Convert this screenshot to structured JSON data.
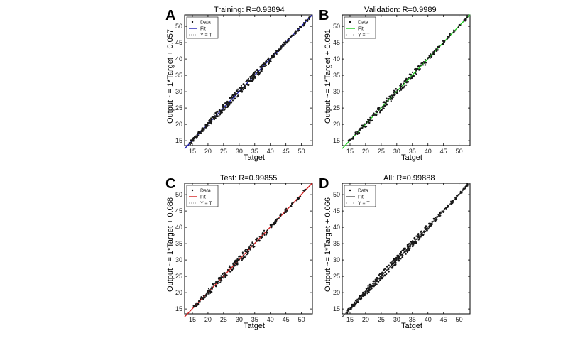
{
  "chart_data": [
    {
      "type": "scatter",
      "panel_label": "A",
      "title": "Training: R=0.93894",
      "xlabel": "Tatget",
      "ylabel": "Output ~= 1*Target + 0.057",
      "xlim": [
        12.5,
        53.5
      ],
      "ylim": [
        13.5,
        53.5
      ],
      "xticks": [
        15,
        20,
        25,
        30,
        35,
        40,
        45,
        50
      ],
      "yticks": [
        15,
        20,
        25,
        30,
        35,
        40,
        45,
        50
      ],
      "fit_color": "#1f1fb4",
      "fit": {
        "slope": 1,
        "intercept": 0.057
      },
      "legend": {
        "placement": "top-left",
        "entries": [
          "Data",
          "Fit",
          "Y = T"
        ]
      },
      "points": [
        [
          14.6,
          15.1
        ],
        [
          15.3,
          15.0
        ],
        [
          15.8,
          16.2
        ],
        [
          16.5,
          16.3
        ],
        [
          17.0,
          17.6
        ],
        [
          17.6,
          17.3
        ],
        [
          18.2,
          18.8
        ],
        [
          18.7,
          18.4
        ],
        [
          19.3,
          19.9
        ],
        [
          19.8,
          19.5
        ],
        [
          20.4,
          21.1
        ],
        [
          20.9,
          20.6
        ],
        [
          21.5,
          22.3
        ],
        [
          22.0,
          21.6
        ],
        [
          22.6,
          23.4
        ],
        [
          23.1,
          22.5
        ],
        [
          23.7,
          24.3
        ],
        [
          24.2,
          23.8
        ],
        [
          24.8,
          25.9
        ],
        [
          25.3,
          24.6
        ],
        [
          25.9,
          26.7
        ],
        [
          26.4,
          25.5
        ],
        [
          27.0,
          28.1
        ],
        [
          27.5,
          26.8
        ],
        [
          28.1,
          29.0
        ],
        [
          28.6,
          27.9
        ],
        [
          29.2,
          30.3
        ],
        [
          29.7,
          28.8
        ],
        [
          30.3,
          31.2
        ],
        [
          30.8,
          30.1
        ],
        [
          31.4,
          32.3
        ],
        [
          31.9,
          31.0
        ],
        [
          32.5,
          33.4
        ],
        [
          33.0,
          32.1
        ],
        [
          33.6,
          34.5
        ],
        [
          34.1,
          33.2
        ],
        [
          34.7,
          35.5
        ],
        [
          35.2,
          34.5
        ],
        [
          35.8,
          36.6
        ],
        [
          36.3,
          35.6
        ],
        [
          36.9,
          37.6
        ],
        [
          37.4,
          36.9
        ],
        [
          38.0,
          38.6
        ],
        [
          38.6,
          38.1
        ],
        [
          39.2,
          39.8
        ],
        [
          39.8,
          39.3
        ],
        [
          40.5,
          41.0
        ],
        [
          41.2,
          40.8
        ],
        [
          42.0,
          42.5
        ],
        [
          43.0,
          42.7
        ],
        [
          44.0,
          44.4
        ],
        [
          45.2,
          45.0
        ],
        [
          46.5,
          46.8
        ],
        [
          48.0,
          47.8
        ],
        [
          49.5,
          49.9
        ],
        [
          51.0,
          50.8
        ],
        [
          52.5,
          52.7
        ]
      ]
    },
    {
      "type": "scatter",
      "panel_label": "B",
      "title": "Validation: R=0.9989",
      "xlabel": "Tatget",
      "ylabel": "Output ~= 1*Target + 0.091",
      "xlim": [
        12.5,
        53.5
      ],
      "ylim": [
        13.5,
        53.5
      ],
      "xticks": [
        15,
        20,
        25,
        30,
        35,
        40,
        45,
        50
      ],
      "yticks": [
        15,
        20,
        25,
        30,
        35,
        40,
        45,
        50
      ],
      "fit_color": "#22cc22",
      "fit": {
        "slope": 1,
        "intercept": 0.091
      },
      "legend": {
        "placement": "top-left",
        "entries": [
          "Data",
          "Fit",
          "Y = T"
        ]
      },
      "points": [
        [
          14.8,
          15.2
        ],
        [
          15.9,
          15.6
        ],
        [
          16.8,
          17.5
        ],
        [
          17.9,
          17.4
        ],
        [
          18.9,
          19.6
        ],
        [
          19.9,
          19.3
        ],
        [
          20.8,
          21.5
        ],
        [
          21.7,
          21.1
        ],
        [
          22.6,
          23.3
        ],
        [
          23.4,
          22.8
        ],
        [
          24.3,
          25.1
        ],
        [
          25.1,
          24.4
        ],
        [
          26.0,
          26.8
        ],
        [
          26.8,
          26.1
        ],
        [
          27.7,
          28.5
        ],
        [
          28.5,
          27.8
        ],
        [
          29.4,
          30.1
        ],
        [
          30.2,
          29.5
        ],
        [
          31.1,
          31.9
        ],
        [
          31.9,
          31.2
        ],
        [
          32.8,
          33.5
        ],
        [
          33.6,
          33.0
        ],
        [
          34.5,
          35.2
        ],
        [
          35.4,
          34.8
        ],
        [
          36.3,
          36.9
        ],
        [
          37.2,
          36.7
        ],
        [
          38.2,
          38.8
        ],
        [
          39.3,
          38.9
        ],
        [
          40.5,
          41.0
        ],
        [
          41.8,
          41.5
        ],
        [
          43.2,
          43.6
        ],
        [
          44.8,
          44.6
        ],
        [
          46.5,
          46.9
        ],
        [
          48.3,
          48.1
        ],
        [
          50.1,
          50.4
        ],
        [
          52.0,
          51.8
        ]
      ]
    },
    {
      "type": "scatter",
      "panel_label": "C",
      "title": "Test: R=0.99855",
      "xlabel": "Tatget",
      "ylabel": "Output ~= 1*Target + 0.088",
      "xlim": [
        12.5,
        53.5
      ],
      "ylim": [
        13.5,
        53.5
      ],
      "xticks": [
        15,
        20,
        25,
        30,
        35,
        40,
        45,
        50
      ],
      "yticks": [
        15,
        20,
        25,
        30,
        35,
        40,
        45,
        50
      ],
      "fit_color": "#d42020",
      "fit": {
        "slope": 1,
        "intercept": 0.088
      },
      "legend": {
        "placement": "top-left",
        "entries": [
          "Data",
          "Fit",
          "Y = T"
        ]
      },
      "points": [
        [
          15.5,
          15.9
        ],
        [
          16.8,
          16.5
        ],
        [
          17.9,
          18.6
        ],
        [
          18.9,
          18.5
        ],
        [
          19.9,
          20.6
        ],
        [
          20.8,
          20.3
        ],
        [
          21.7,
          22.4
        ],
        [
          22.6,
          22.0
        ],
        [
          23.5,
          24.3
        ],
        [
          24.3,
          23.7
        ],
        [
          25.2,
          26.0
        ],
        [
          26.0,
          25.3
        ],
        [
          26.9,
          27.7
        ],
        [
          27.7,
          27.0
        ],
        [
          28.6,
          29.4
        ],
        [
          29.4,
          28.7
        ],
        [
          30.3,
          31.1
        ],
        [
          31.1,
          30.4
        ],
        [
          32.0,
          32.7
        ],
        [
          32.8,
          32.2
        ],
        [
          33.7,
          34.4
        ],
        [
          34.6,
          34.0
        ],
        [
          35.5,
          36.2
        ],
        [
          36.5,
          35.9
        ],
        [
          37.6,
          38.2
        ],
        [
          38.8,
          38.4
        ],
        [
          40.1,
          40.7
        ],
        [
          41.6,
          41.2
        ],
        [
          43.2,
          43.6
        ],
        [
          45.0,
          44.7
        ],
        [
          47.0,
          47.3
        ],
        [
          49.1,
          48.9
        ],
        [
          51.2,
          51.5
        ]
      ]
    },
    {
      "type": "scatter",
      "panel_label": "D",
      "title": "All: R=0.99888",
      "xlabel": "Tatget",
      "ylabel": "Output ~= 1*Target + 0.066",
      "xlim": [
        12.5,
        53.5
      ],
      "ylim": [
        13.5,
        53.5
      ],
      "xticks": [
        15,
        20,
        25,
        30,
        35,
        40,
        45,
        50
      ],
      "yticks": [
        15,
        20,
        25,
        30,
        35,
        40,
        45,
        50
      ],
      "fit_color": "#555555",
      "fit": {
        "slope": 1,
        "intercept": 0.066
      },
      "legend": {
        "placement": "top-left",
        "entries": [
          "Data",
          "Fit",
          "Y = T"
        ]
      },
      "points": [
        [
          14.5,
          15.0
        ],
        [
          15.2,
          14.9
        ],
        [
          15.7,
          16.3
        ],
        [
          16.3,
          16.1
        ],
        [
          16.9,
          17.6
        ],
        [
          17.5,
          17.1
        ],
        [
          18.1,
          18.9
        ],
        [
          18.6,
          18.2
        ],
        [
          19.2,
          20.0
        ],
        [
          19.7,
          19.2
        ],
        [
          20.3,
          21.2
        ],
        [
          20.8,
          20.3
        ],
        [
          21.4,
          22.4
        ],
        [
          21.9,
          21.3
        ],
        [
          22.5,
          23.5
        ],
        [
          23.0,
          22.3
        ],
        [
          23.6,
          24.5
        ],
        [
          24.1,
          23.4
        ],
        [
          24.7,
          25.8
        ],
        [
          25.2,
          24.4
        ],
        [
          25.8,
          26.9
        ],
        [
          26.3,
          25.3
        ],
        [
          26.9,
          28.0
        ],
        [
          27.4,
          26.5
        ],
        [
          28.0,
          29.1
        ],
        [
          28.5,
          27.6
        ],
        [
          29.1,
          30.2
        ],
        [
          29.6,
          28.6
        ],
        [
          30.2,
          31.3
        ],
        [
          30.7,
          29.8
        ],
        [
          31.3,
          32.4
        ],
        [
          31.8,
          30.8
        ],
        [
          32.4,
          33.5
        ],
        [
          32.9,
          31.9
        ],
        [
          33.5,
          34.6
        ],
        [
          34.0,
          33.0
        ],
        [
          34.6,
          35.6
        ],
        [
          35.1,
          34.2
        ],
        [
          35.7,
          36.7
        ],
        [
          36.2,
          35.3
        ],
        [
          36.8,
          37.8
        ],
        [
          37.3,
          36.5
        ],
        [
          37.9,
          38.7
        ],
        [
          38.5,
          37.8
        ],
        [
          39.1,
          39.9
        ],
        [
          39.7,
          39.1
        ],
        [
          40.4,
          41.1
        ],
        [
          41.1,
          40.6
        ],
        [
          41.9,
          42.6
        ],
        [
          42.8,
          42.4
        ],
        [
          43.8,
          44.3
        ],
        [
          45.0,
          44.7
        ],
        [
          46.3,
          46.7
        ],
        [
          47.8,
          47.5
        ],
        [
          49.3,
          49.7
        ],
        [
          50.8,
          50.6
        ],
        [
          52.3,
          52.6
        ]
      ]
    }
  ]
}
